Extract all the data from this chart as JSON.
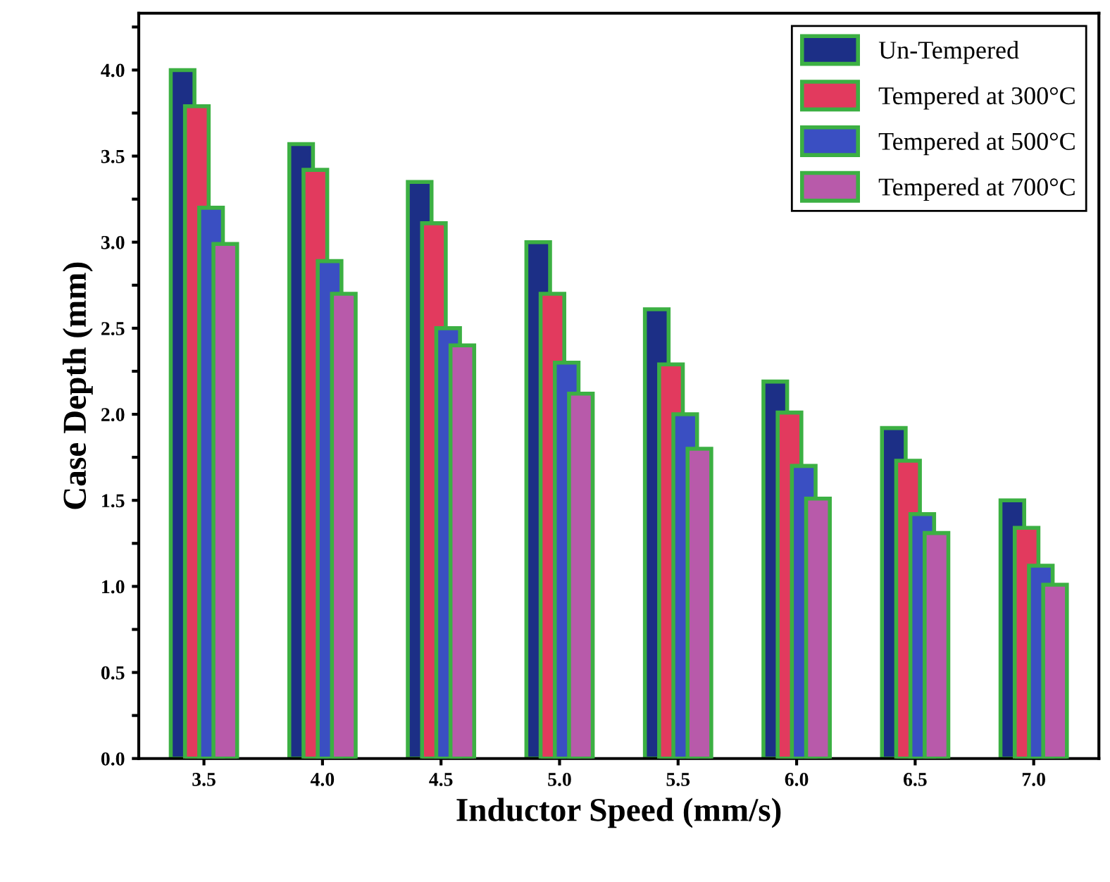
{
  "chart_data": {
    "type": "bar",
    "xlabel": "Inductor Speed (mm/s)",
    "ylabel": "Case Depth (mm)",
    "categories": [
      "3.5",
      "4.0",
      "4.5",
      "5.0",
      "5.5",
      "6.0",
      "6.5",
      "7.0"
    ],
    "series": [
      {
        "name": "Un-Tempered",
        "color": "#1c2f86",
        "values": [
          4.0,
          3.57,
          3.35,
          3.0,
          2.61,
          2.19,
          1.92,
          1.5
        ]
      },
      {
        "name": "Tempered at 300°C",
        "color": "#e23a5e",
        "values": [
          3.79,
          3.42,
          3.11,
          2.7,
          2.29,
          2.01,
          1.73,
          1.34
        ]
      },
      {
        "name": "Tempered at 500°C",
        "color": "#3a4fc2",
        "values": [
          3.2,
          2.89,
          2.5,
          2.3,
          2.0,
          1.7,
          1.42,
          1.12
        ]
      },
      {
        "name": "Tempered at 700°C",
        "color": "#b85aaa",
        "values": [
          2.99,
          2.7,
          2.4,
          2.12,
          1.8,
          1.51,
          1.31,
          1.01
        ]
      }
    ],
    "ylim": [
      0,
      4.33
    ],
    "yticks": [
      {
        "value": 0.0,
        "label": "0.0"
      },
      {
        "value": 0.25,
        "label": null
      },
      {
        "value": 0.5,
        "label": "0.5"
      },
      {
        "value": 0.75,
        "label": null
      },
      {
        "value": 1.0,
        "label": "1.0"
      },
      {
        "value": 1.25,
        "label": null
      },
      {
        "value": 1.5,
        "label": "1.5"
      },
      {
        "value": 1.75,
        "label": null
      },
      {
        "value": 2.0,
        "label": "2.0"
      },
      {
        "value": 2.25,
        "label": null
      },
      {
        "value": 2.5,
        "label": "2.5"
      },
      {
        "value": 2.75,
        "label": null
      },
      {
        "value": 3.0,
        "label": "3.0"
      },
      {
        "value": 3.25,
        "label": null
      },
      {
        "value": 3.5,
        "label": "3.5"
      },
      {
        "value": 3.75,
        "label": null
      },
      {
        "value": 4.0,
        "label": "4.0"
      },
      {
        "value": 4.25,
        "label": null
      }
    ],
    "grid": false,
    "legend": "top right"
  }
}
